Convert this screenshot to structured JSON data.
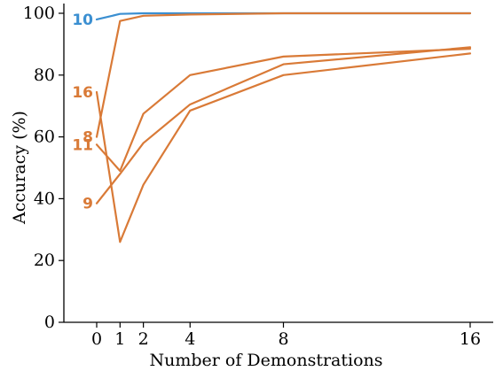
{
  "chart_data": {
    "type": "line",
    "title": "",
    "xlabel": "Number of Demonstrations",
    "ylabel": "Accuracy (%)",
    "xlim": [
      0,
      16
    ],
    "ylim": [
      0,
      100
    ],
    "xticks": [
      0,
      1,
      2,
      4,
      8,
      16
    ],
    "yticks": [
      0,
      20,
      40,
      60,
      80,
      100
    ],
    "grid": false,
    "legend": "none",
    "series": [
      {
        "name": "10",
        "color": "#3b8fd1",
        "x": [
          0,
          1,
          2,
          4,
          8,
          16
        ],
        "y": [
          98.0,
          99.8,
          100.0,
          100.0,
          100.0,
          100.0
        ]
      },
      {
        "name": "16",
        "color": "#d97a37",
        "x": [
          0,
          1,
          2,
          4,
          8,
          16
        ],
        "y": [
          74.5,
          26.0,
          44.5,
          68.5,
          80.0,
          87.0
        ]
      },
      {
        "name": "8",
        "color": "#d97a37",
        "x": [
          0,
          1,
          2,
          4,
          8,
          16
        ],
        "y": [
          60.0,
          97.5,
          99.2,
          99.6,
          100.0,
          100.0
        ]
      },
      {
        "name": "11",
        "color": "#d97a37",
        "x": [
          0,
          1,
          2,
          4,
          8,
          16
        ],
        "y": [
          57.5,
          49.0,
          67.5,
          80.0,
          86.0,
          88.5
        ]
      },
      {
        "name": "9",
        "color": "#d97a37",
        "x": [
          0,
          1,
          2,
          4,
          8,
          16
        ],
        "y": [
          38.5,
          48.0,
          58.0,
          70.5,
          83.5,
          89.0
        ]
      }
    ]
  }
}
